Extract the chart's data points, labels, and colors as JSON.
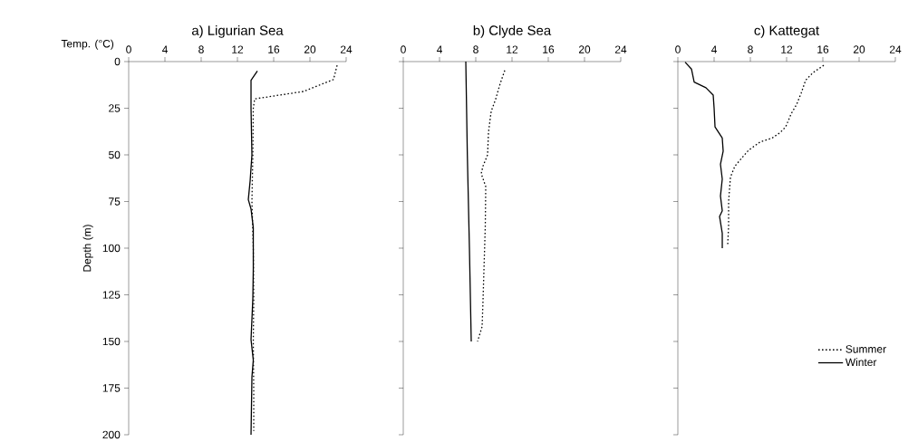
{
  "chart_data": [
    {
      "type": "line",
      "title": "a)  Ligurian Sea",
      "xlabel": "Temp. (°C)",
      "ylabel": "Depth (m)",
      "xlim": [
        0,
        24
      ],
      "ylim": [
        200,
        0
      ],
      "xticks": [
        0,
        4,
        8,
        12,
        16,
        20,
        24
      ],
      "yticks": [
        0,
        25,
        50,
        75,
        100,
        125,
        150,
        175,
        200
      ],
      "grid": false,
      "legend": false,
      "series": [
        {
          "color": "#000000",
          "line_style": "dotted",
          "x": [
            23.0,
            22.6,
            19.3,
            13.9,
            13.75,
            13.7,
            13.6,
            13.75,
            13.8,
            13.75,
            13.8,
            13.8
          ],
          "values": [
            2,
            9.6,
            16,
            20,
            25,
            50,
            75,
            100,
            127,
            150,
            177,
            198
          ]
        },
        {
          "color": "#000000",
          "line_style": "solid",
          "x": [
            14.2,
            13.5,
            13.5,
            13.6,
            13.4,
            13.2,
            13.5,
            13.75,
            13.75,
            13.7,
            13.5,
            13.75,
            13.6,
            13.5
          ],
          "values": [
            5,
            10,
            25,
            50,
            64,
            74,
            79,
            89,
            111,
            127,
            149,
            160,
            169,
            200
          ]
        }
      ]
    },
    {
      "type": "line",
      "title": "b)  Clyde Sea",
      "xlim": [
        0,
        24
      ],
      "ylim": [
        200,
        0
      ],
      "xticks": [
        0,
        4,
        8,
        12,
        16,
        20,
        24
      ],
      "yticks": [
        0,
        25,
        50,
        75,
        100,
        125,
        150,
        175,
        200
      ],
      "tick_labels": "x",
      "grid": false,
      "legend": false,
      "series": [
        {
          "color": "#000000",
          "line_style": "dotted",
          "x": [
            11.2,
            10.7,
            10.2,
            9.7,
            9.4,
            9.3,
            8.8,
            8.6,
            9.1,
            9.05,
            8.9,
            8.8,
            8.7,
            8.2
          ],
          "values": [
            4.7,
            11.7,
            20,
            26.7,
            38,
            50,
            56,
            60,
            67,
            88,
            112,
            128,
            142,
            150
          ]
        },
        {
          "color": "#000000",
          "line_style": "solid",
          "x": [
            6.9,
            7.07,
            7.3,
            7.5
          ],
          "values": [
            0,
            50,
            100,
            150
          ]
        }
      ]
    },
    {
      "type": "line",
      "title": "c)  Kattegat",
      "xlim": [
        0,
        24
      ],
      "ylim": [
        200,
        0
      ],
      "xticks": [
        0,
        4,
        8,
        12,
        16,
        20,
        24
      ],
      "yticks": [
        0,
        25,
        50,
        75,
        100,
        125,
        150,
        175,
        200
      ],
      "tick_labels": "x",
      "grid": false,
      "legend": "bottom right",
      "series": [
        {
          "name": "Summer",
          "color": "#000000",
          "line_style": "dotted",
          "x": [
            16.1,
            14.9,
            14.1,
            13.6,
            13.1,
            12.5,
            11.9,
            11.3,
            10.4,
            9.1,
            7.8,
            7.0,
            6.3,
            5.8,
            5.6,
            5.6,
            5.5
          ],
          "values": [
            2,
            6,
            10,
            17,
            23,
            28,
            35,
            38,
            41,
            43,
            47.5,
            52,
            56,
            62,
            75,
            88,
            98
          ]
        },
        {
          "name": "Winter",
          "color": "#000000",
          "line_style": "solid",
          "x": [
            0.8,
            1.5,
            1.8,
            3.1,
            3.9,
            4.0,
            4.1,
            4.9,
            5.0,
            4.7,
            4.9,
            4.7,
            4.9,
            4.6,
            4.9,
            4.9
          ],
          "values": [
            0.3,
            4,
            11,
            14,
            18,
            25,
            35,
            41,
            48,
            55,
            63,
            72,
            80,
            83,
            92,
            100
          ]
        }
      ]
    }
  ]
}
